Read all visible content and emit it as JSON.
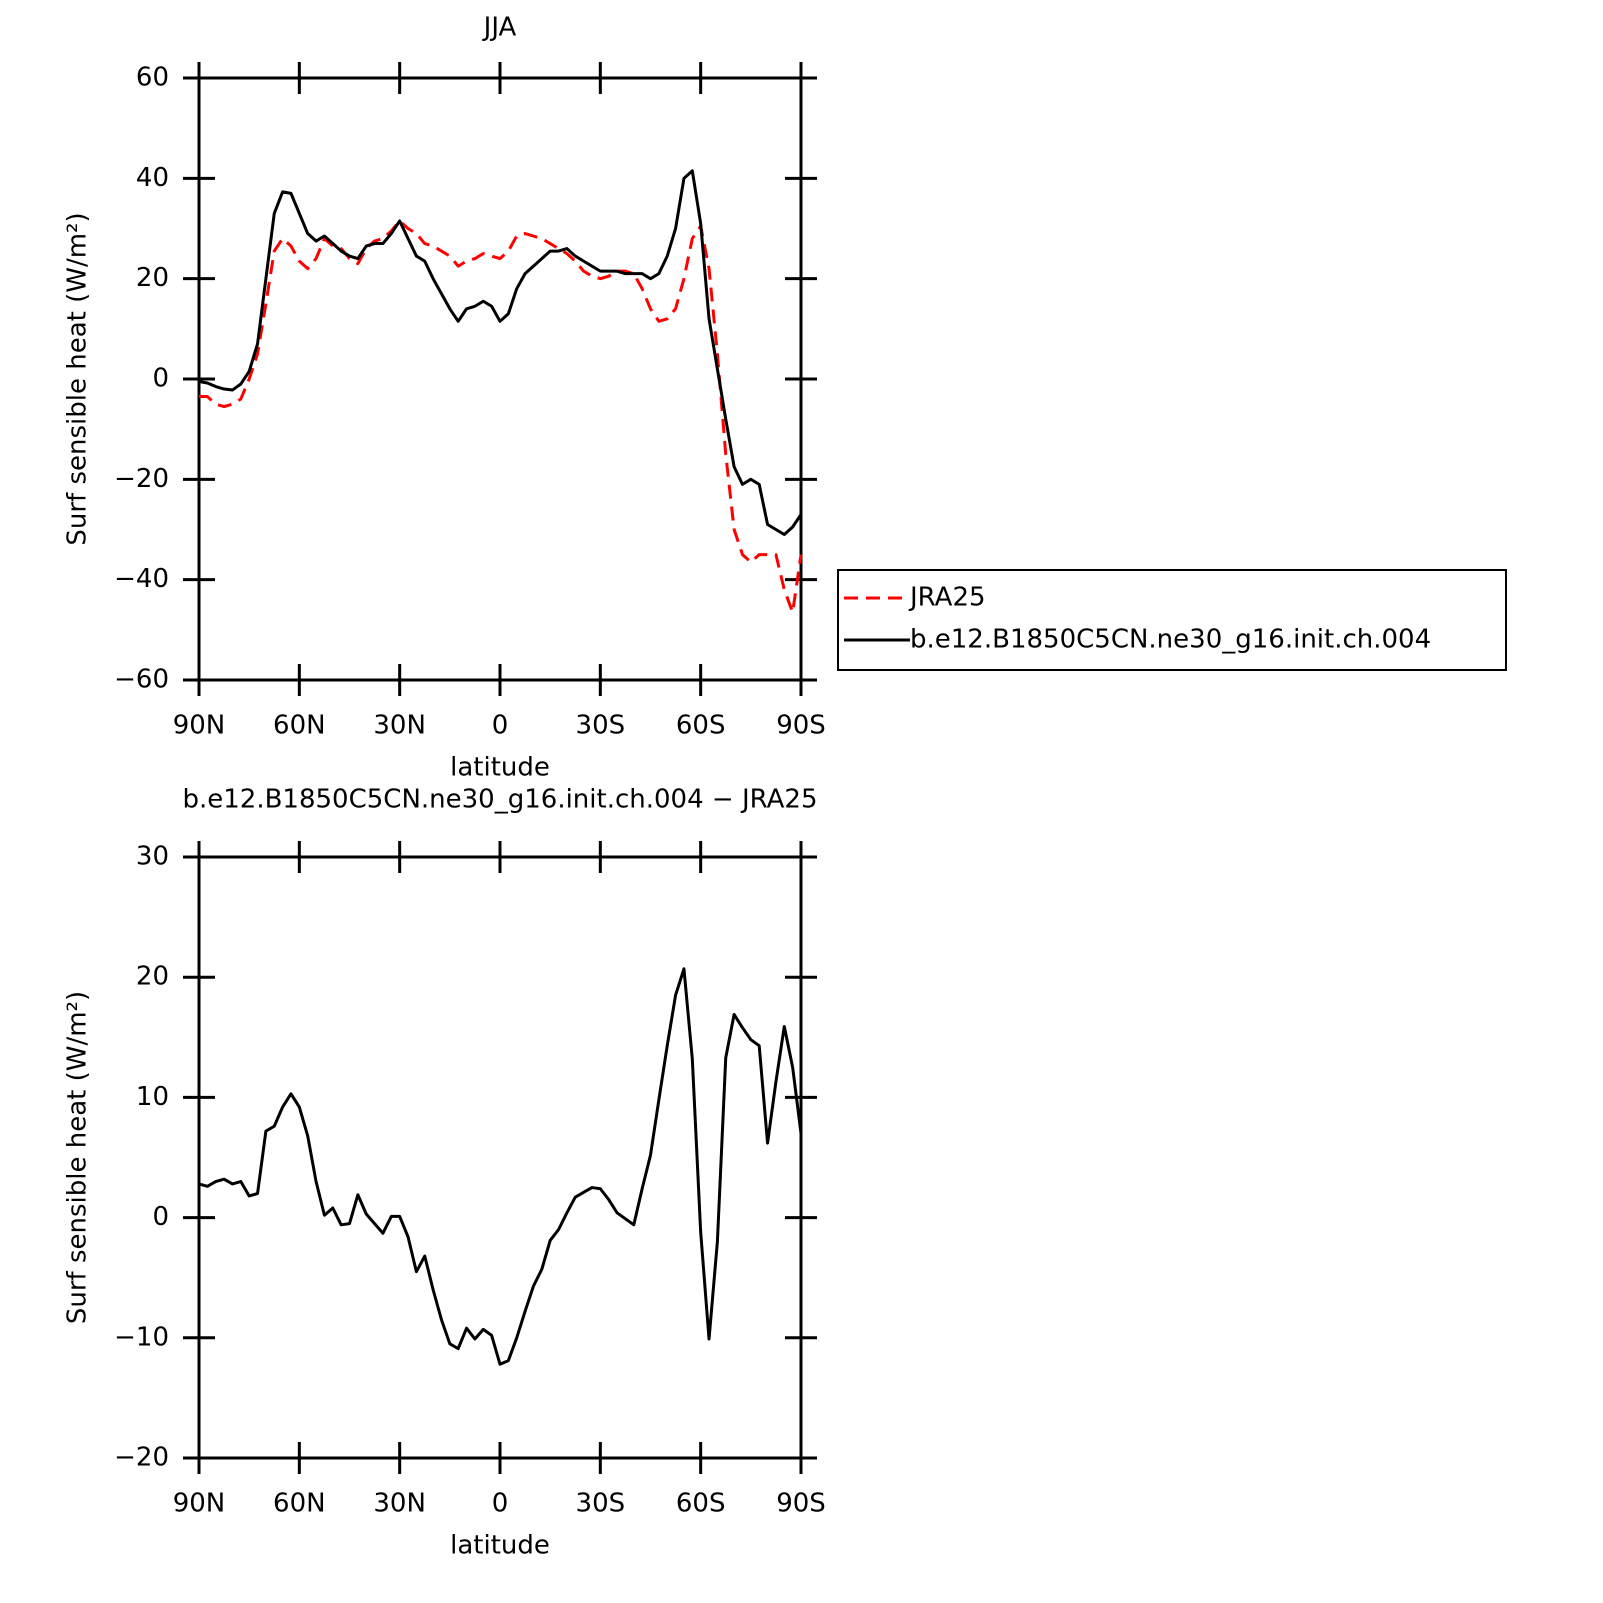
{
  "chart_data": [
    {
      "type": "line",
      "title": "JJA",
      "x_label": "latitude",
      "y_label": "Surf sensible heat (W/m²)",
      "legend": "outside-right",
      "x": [
        90,
        87.5,
        85,
        82.5,
        80,
        77.5,
        75,
        72.5,
        70,
        67.5,
        65,
        62.5,
        60,
        57.5,
        55,
        52.5,
        50,
        47.5,
        45,
        42.5,
        40,
        37.5,
        35,
        32.5,
        30,
        27.5,
        25,
        22.5,
        20,
        17.5,
        15,
        12.5,
        10,
        7.5,
        5,
        2.5,
        0,
        -2.5,
        -5,
        -7.5,
        -10,
        -12.5,
        -15,
        -17.5,
        -20,
        -22.5,
        -25,
        -27.5,
        -30,
        -32.5,
        -35,
        -37.5,
        -40,
        -42.5,
        -45,
        -47.5,
        -50,
        -52.5,
        -55,
        -57.5,
        -60,
        -62.5,
        -65,
        -67.5,
        -70,
        -72.5,
        -75,
        -77.5,
        -80,
        -82.5,
        -85,
        -87.5,
        -90
      ],
      "xlim": [
        90,
        -90
      ],
      "xticks": [
        {
          "value": 90,
          "label": "90N"
        },
        {
          "value": 60,
          "label": "60N"
        },
        {
          "value": 30,
          "label": "30N"
        },
        0,
        {
          "value": -30,
          "label": "30S"
        },
        {
          "value": -60,
          "label": "60S"
        },
        {
          "value": -90,
          "label": "90S"
        }
      ],
      "ylim": [
        -60,
        60
      ],
      "yticks": [
        {
          "value": -60,
          "label": "−60"
        },
        {
          "value": -40,
          "label": "−40"
        },
        {
          "value": -20,
          "label": "−20"
        },
        0,
        20,
        40,
        60
      ],
      "series": [
        {
          "name": "JRA25",
          "color": "#ff0000",
          "style": "dashed",
          "values": [
            -3.5,
            -3.5,
            -5,
            -5.5,
            -5,
            -4,
            0,
            5,
            15,
            25.5,
            28,
            26.5,
            23.5,
            22,
            24,
            28,
            26.5,
            26,
            24,
            23,
            26,
            27.5,
            28,
            29.5,
            31.5,
            30,
            29,
            27,
            26.5,
            25.5,
            24.5,
            22.5,
            23.5,
            24,
            25,
            24.5,
            24,
            25.5,
            28.5,
            29,
            28.5,
            28,
            27,
            26,
            25,
            23.5,
            21.5,
            20.5,
            20,
            20.5,
            21.5,
            21.5,
            21,
            18,
            14,
            11.5,
            12,
            14,
            20,
            28,
            30.5,
            22,
            5,
            -15,
            -30,
            -35,
            -36.5,
            -35,
            -35,
            -35,
            -42,
            -46.5,
            -35
          ]
        },
        {
          "name": "b.e12.B1850C5CN.ne30_g16.init.ch.004",
          "color": "#000000",
          "style": "solid",
          "values": [
            -0.5,
            -0.8,
            -1.5,
            -2,
            -2.2,
            -1,
            1.5,
            7,
            20,
            33,
            37.3,
            37,
            33,
            29,
            27.5,
            28.5,
            27,
            25.5,
            24.5,
            24,
            26.5,
            27,
            27,
            29,
            31.5,
            28,
            24.5,
            23.5,
            20,
            17,
            14,
            11.5,
            14,
            14.5,
            15.5,
            14.5,
            11.5,
            13,
            18,
            21,
            22.5,
            24,
            25.5,
            25.5,
            26,
            24.5,
            23.5,
            22.5,
            21.5,
            21.5,
            21.5,
            21,
            21,
            21,
            20,
            21,
            24.5,
            30,
            40,
            41.5,
            31,
            12,
            2,
            -8,
            -17.5,
            -21,
            -20,
            -21,
            -29,
            -30,
            -31,
            -29.5,
            -27
          ]
        }
      ]
    },
    {
      "type": "line",
      "title": "b.e12.B1850C5CN.ne30_g16.init.ch.004 − JRA25",
      "x_label": "latitude",
      "y_label": "Surf sensible heat (W/m²)",
      "x": [
        90,
        87.5,
        85,
        82.5,
        80,
        77.5,
        75,
        72.5,
        70,
        67.5,
        65,
        62.5,
        60,
        57.5,
        55,
        52.5,
        50,
        47.5,
        45,
        42.5,
        40,
        37.5,
        35,
        32.5,
        30,
        27.5,
        25,
        22.5,
        20,
        17.5,
        15,
        12.5,
        10,
        7.5,
        5,
        2.5,
        0,
        -2.5,
        -5,
        -7.5,
        -10,
        -12.5,
        -15,
        -17.5,
        -20,
        -22.5,
        -25,
        -27.5,
        -30,
        -32.5,
        -35,
        -37.5,
        -40,
        -42.5,
        -45,
        -47.5,
        -50,
        -52.5,
        -55,
        -57.5,
        -60,
        -62.5,
        -65,
        -67.5,
        -70,
        -72.5,
        -75,
        -77.5,
        -80,
        -82.5,
        -85,
        -87.5,
        -90
      ],
      "xlim": [
        90,
        -90
      ],
      "xticks": [
        {
          "value": 90,
          "label": "90N"
        },
        {
          "value": 60,
          "label": "60N"
        },
        {
          "value": 30,
          "label": "30N"
        },
        0,
        {
          "value": -30,
          "label": "30S"
        },
        {
          "value": -60,
          "label": "60S"
        },
        {
          "value": -90,
          "label": "90S"
        }
      ],
      "ylim": [
        -20,
        30
      ],
      "yticks": [
        {
          "value": -20,
          "label": "−20"
        },
        {
          "value": -10,
          "label": "−10"
        },
        0,
        10,
        20,
        30
      ],
      "series": [
        {
          "color": "#000000",
          "style": "solid",
          "values": [
            2.8,
            2.6,
            3,
            3.2,
            2.8,
            3,
            1.8,
            2,
            7.2,
            7.6,
            9.2,
            10.3,
            9.2,
            6.8,
            3,
            0.2,
            0.8,
            -0.6,
            -0.5,
            1.9,
            0.3,
            -0.5,
            -1.3,
            0.1,
            0.1,
            -1.6,
            -4.5,
            -3.2,
            -6,
            -8.5,
            -10.5,
            -10.9,
            -9.2,
            -10.1,
            -9.3,
            -9.8,
            -12.2,
            -11.9,
            -10,
            -7.8,
            -5.7,
            -4.3,
            -1.9,
            -1,
            0.4,
            1.7,
            2.1,
            2.5,
            2.4,
            1.5,
            0.4,
            -0.1,
            -0.6,
            2.4,
            5.2,
            9.8,
            14.3,
            18.5,
            20.7,
            13.2,
            -1.2,
            -10.1,
            -2,
            13.3,
            16.9,
            15.8,
            14.8,
            14.3,
            6.2,
            11.3,
            15.9,
            12.5,
            7
          ]
        }
      ]
    }
  ]
}
